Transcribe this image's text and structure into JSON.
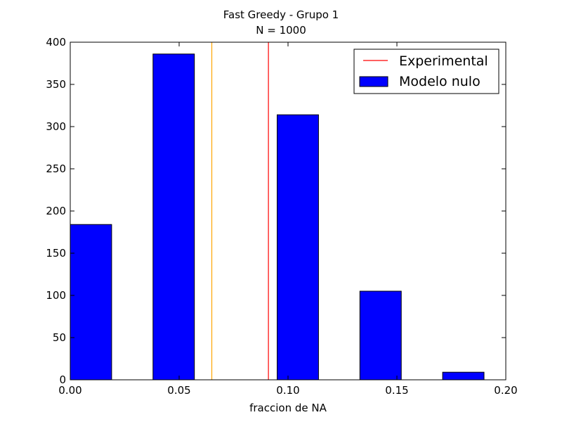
{
  "chart_data": {
    "type": "bar",
    "title": "Fast Greedy - Grupo 1",
    "subtitle": "N = 1000",
    "xlabel": "fraccion de NA",
    "ylabel": "",
    "xlim": [
      0.0,
      0.2
    ],
    "ylim": [
      0,
      400
    ],
    "x_ticks": [
      "0.00",
      "0.05",
      "0.10",
      "0.15",
      "0.20"
    ],
    "x_tick_values": [
      0.0,
      0.05,
      0.1,
      0.15,
      0.2
    ],
    "y_ticks": [
      "0",
      "50",
      "100",
      "150",
      "200",
      "250",
      "300",
      "350",
      "400"
    ],
    "y_tick_values": [
      0,
      50,
      100,
      150,
      200,
      250,
      300,
      350,
      400
    ],
    "grid": false,
    "legend_position": "top-right",
    "series": [
      {
        "name": "Modelo nulo",
        "color": "#0000ff",
        "bins": [
          {
            "x0": 0.0,
            "x1": 0.019,
            "value": 184
          },
          {
            "x0": 0.038,
            "x1": 0.057,
            "value": 386
          },
          {
            "x0": 0.076,
            "x1": 0.095,
            "value": 0
          },
          {
            "x0": 0.095,
            "x1": 0.114,
            "value": 314
          },
          {
            "x0": 0.133,
            "x1": 0.152,
            "value": 105
          },
          {
            "x0": 0.171,
            "x1": 0.19,
            "value": 9
          }
        ]
      }
    ],
    "vlines": [
      {
        "name": "Experimental",
        "x": 0.091,
        "color": "#ff0000",
        "in_legend": true
      },
      {
        "name": "",
        "x": 0.065,
        "color": "#ffa500",
        "in_legend": false
      }
    ]
  }
}
